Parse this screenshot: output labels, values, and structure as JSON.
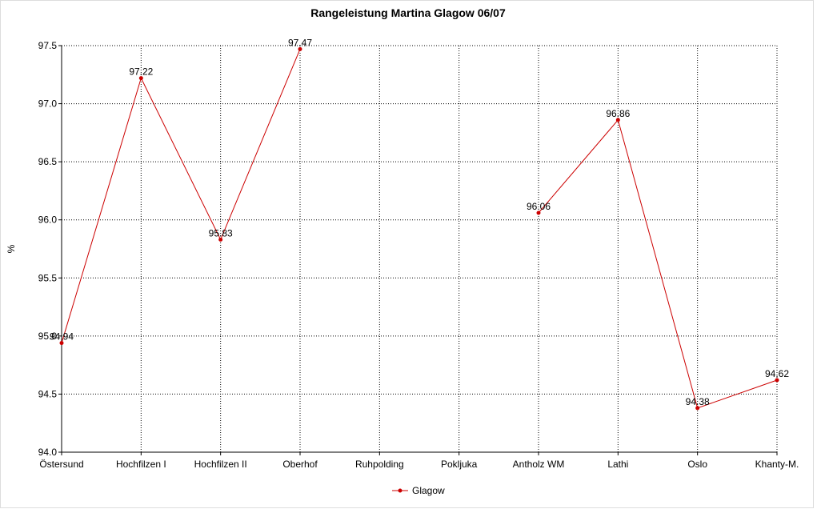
{
  "chart_data": {
    "type": "line",
    "title": "Rangeleistung Martina Glagow 06/07",
    "y_label": "%",
    "categories": [
      "Östersund",
      "Hochfilzen I",
      "Hochfilzen II",
      "Oberhof",
      "Ruhpolding",
      "Pokljuka",
      "Antholz WM",
      "Lathi",
      "Oslo",
      "Khanty-M."
    ],
    "series": [
      {
        "name": "Glagow",
        "color": "#cc0000",
        "values": [
          94.94,
          97.22,
          95.83,
          97.47,
          null,
          null,
          96.06,
          96.86,
          94.38,
          94.62
        ]
      }
    ],
    "ylim": [
      94.0,
      97.5
    ],
    "yticks": [
      {
        "value": 94,
        "label": "94.0"
      },
      94.5,
      {
        "value": 95,
        "label": "95.0"
      },
      95.5,
      {
        "value": 96,
        "label": "96.0"
      },
      96.5,
      {
        "value": 97,
        "label": "97.0"
      },
      97.5
    ],
    "grid": true,
    "legend": "bottom"
  }
}
